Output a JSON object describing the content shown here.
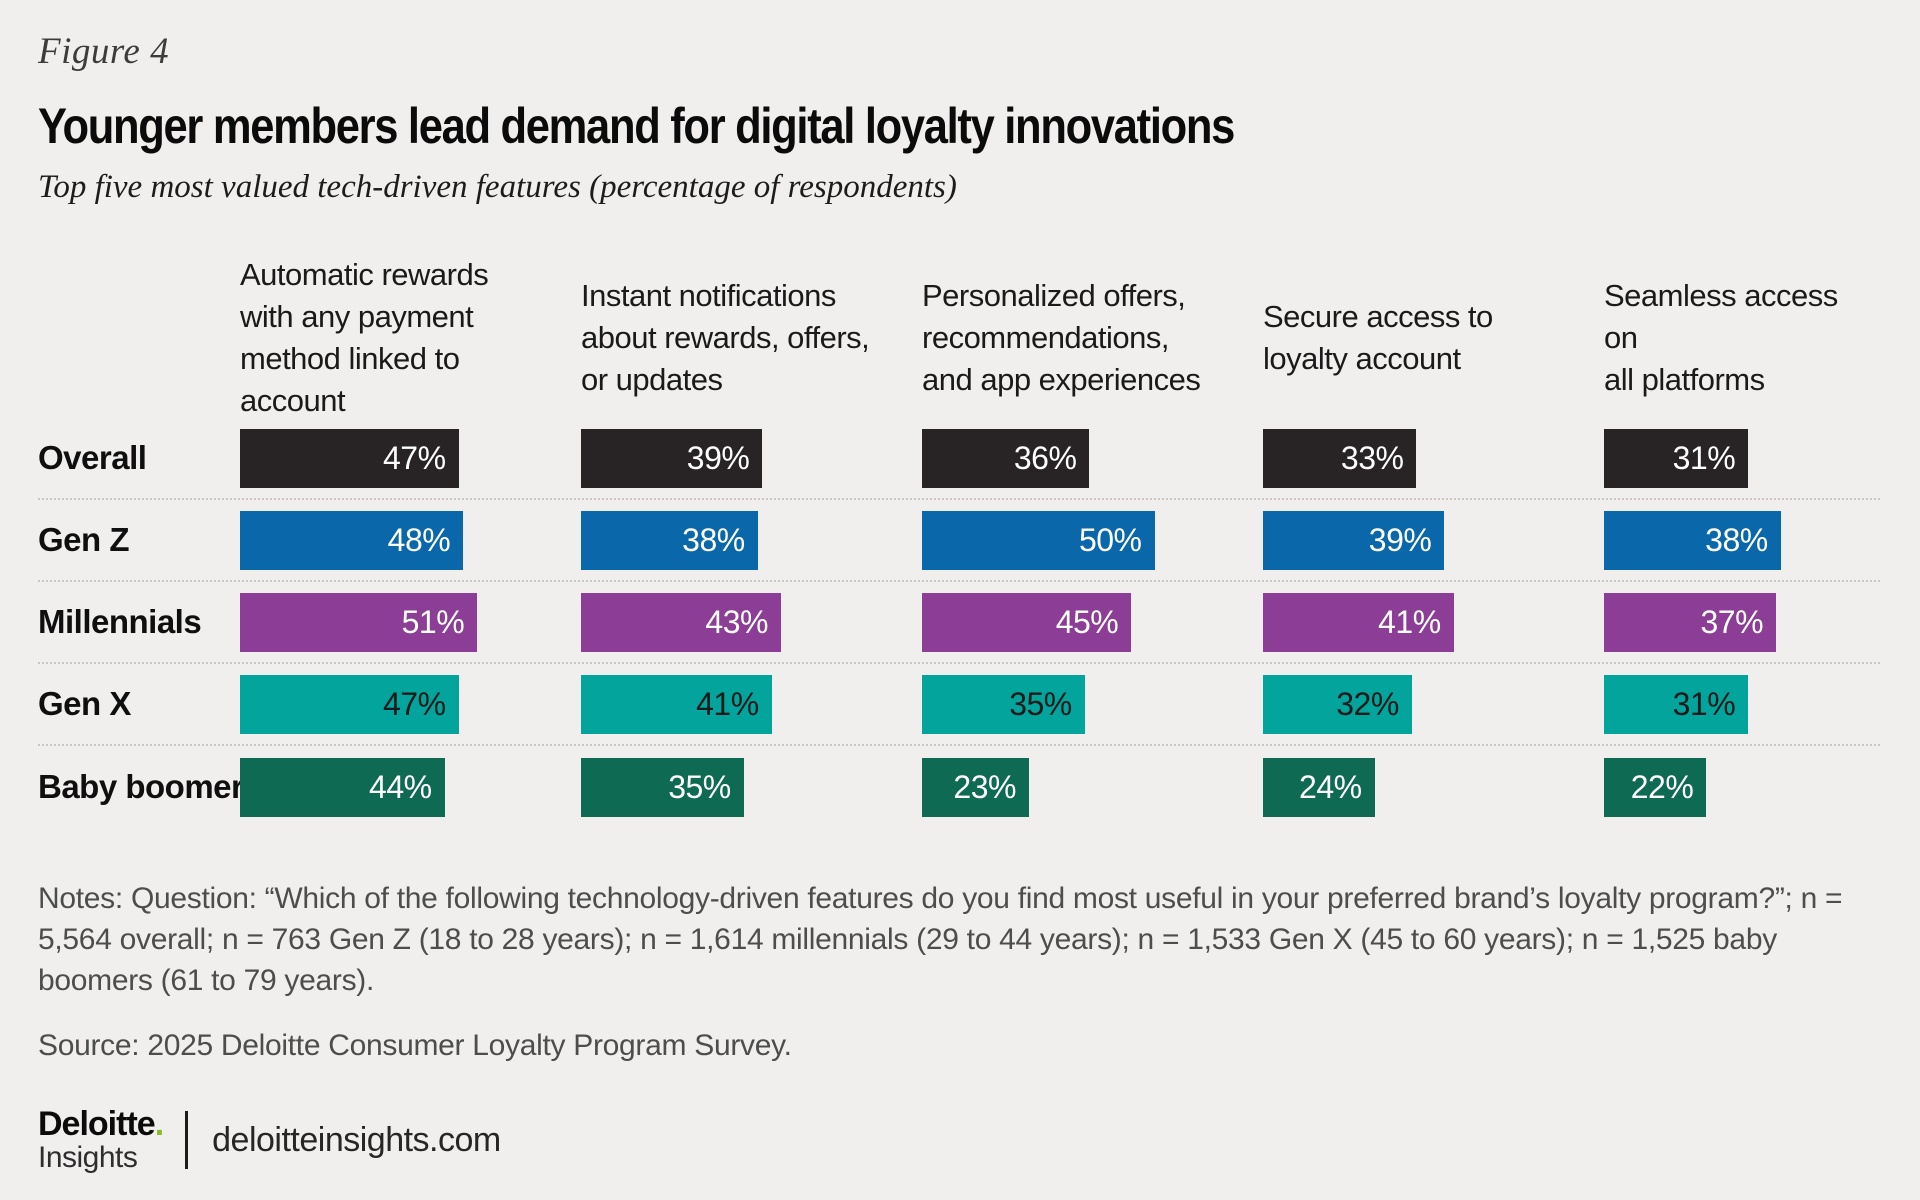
{
  "header": {
    "figure_label": "Figure 4",
    "title": "Younger members lead demand for digital loyalty innovations",
    "subtitle": "Top five most valued tech-driven features (percentage of respondents)"
  },
  "chart_data": {
    "type": "bar",
    "orientation": "horizontal",
    "layout": "grouped-by-column-table",
    "value_suffix": "%",
    "xlim": [
      0,
      59
    ],
    "grid": "dotted row separators",
    "columns": [
      "Automatic rewards\nwith any payment\nmethod linked to\naccount",
      "Instant notifications\nabout rewards, offers,\nor updates",
      "Personalized offers,\nrecommendations,\nand app experiences",
      "Secure access to\nloyalty account",
      "Seamless access on\nall platforms"
    ],
    "series": [
      {
        "name": "Overall",
        "color": "#282425",
        "text_color": "#ffffff",
        "values": [
          47,
          39,
          36,
          33,
          31
        ]
      },
      {
        "name": "Gen Z",
        "color": "#0a67aa",
        "text_color": "#ffffff",
        "values": [
          48,
          38,
          50,
          39,
          38
        ]
      },
      {
        "name": "Millennials",
        "color": "#8c3d96",
        "text_color": "#ffffff",
        "values": [
          51,
          43,
          45,
          41,
          37
        ]
      },
      {
        "name": "Gen X",
        "color": "#02a49c",
        "text_color": "#1a1a1a",
        "values": [
          47,
          41,
          35,
          32,
          31
        ]
      },
      {
        "name": "Baby boomers",
        "color": "#0e6a52",
        "text_color": "#ffffff",
        "values": [
          44,
          35,
          23,
          24,
          22
        ]
      }
    ]
  },
  "notes": "Notes: Question: “Which of the following technology-driven features do you find most useful in your preferred brand’s loyalty program?”; n = 5,564 overall; n = 763 Gen Z (18 to 28 years); n = 1,614 millennials (29 to 44 years); n = 1,533 Gen X (45 to 60 years); n = 1,525 baby boomers (61 to 79 years).",
  "source": "Source: 2025 Deloitte Consumer Loyalty Program Survey.",
  "footer": {
    "logo_word": "Deloitte",
    "logo_dot": ".",
    "logo_line2": "Insights",
    "site": "deloitteinsights.com",
    "accent_green": "#86bc25"
  }
}
